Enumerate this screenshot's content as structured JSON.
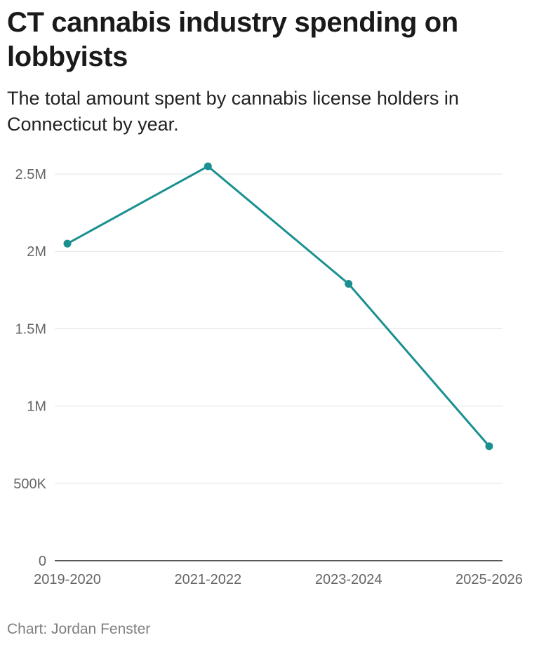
{
  "header": {
    "title": "CT cannabis industry spending on lobbyists",
    "subtitle": "The total amount spent by cannabis license holders in Connecticut by year."
  },
  "footer": {
    "credit": "Chart: Jordan Fenster"
  },
  "colors": {
    "series": "#1a9090",
    "grid": "#e3e3e3",
    "axis": "#222222"
  },
  "chart_data": {
    "type": "line",
    "title": "CT cannabis industry spending on lobbyists",
    "subtitle": "The total amount spent by cannabis license holders in Connecticut by year.",
    "xlabel": "",
    "ylabel": "",
    "categories": [
      "2019-2020",
      "2021-2022",
      "2023-2024",
      "2025-2026"
    ],
    "series": [
      {
        "values": [
          2050000,
          2550000,
          1790000,
          740000
        ]
      }
    ],
    "ylim": [
      0,
      2500000
    ],
    "yticks": [
      0,
      500000,
      1000000,
      1500000,
      2000000,
      2500000
    ],
    "ytick_labels": [
      "0",
      "500K",
      "1M",
      "1.5M",
      "2M",
      "2.5M"
    ],
    "grid": true,
    "legend": "none"
  }
}
